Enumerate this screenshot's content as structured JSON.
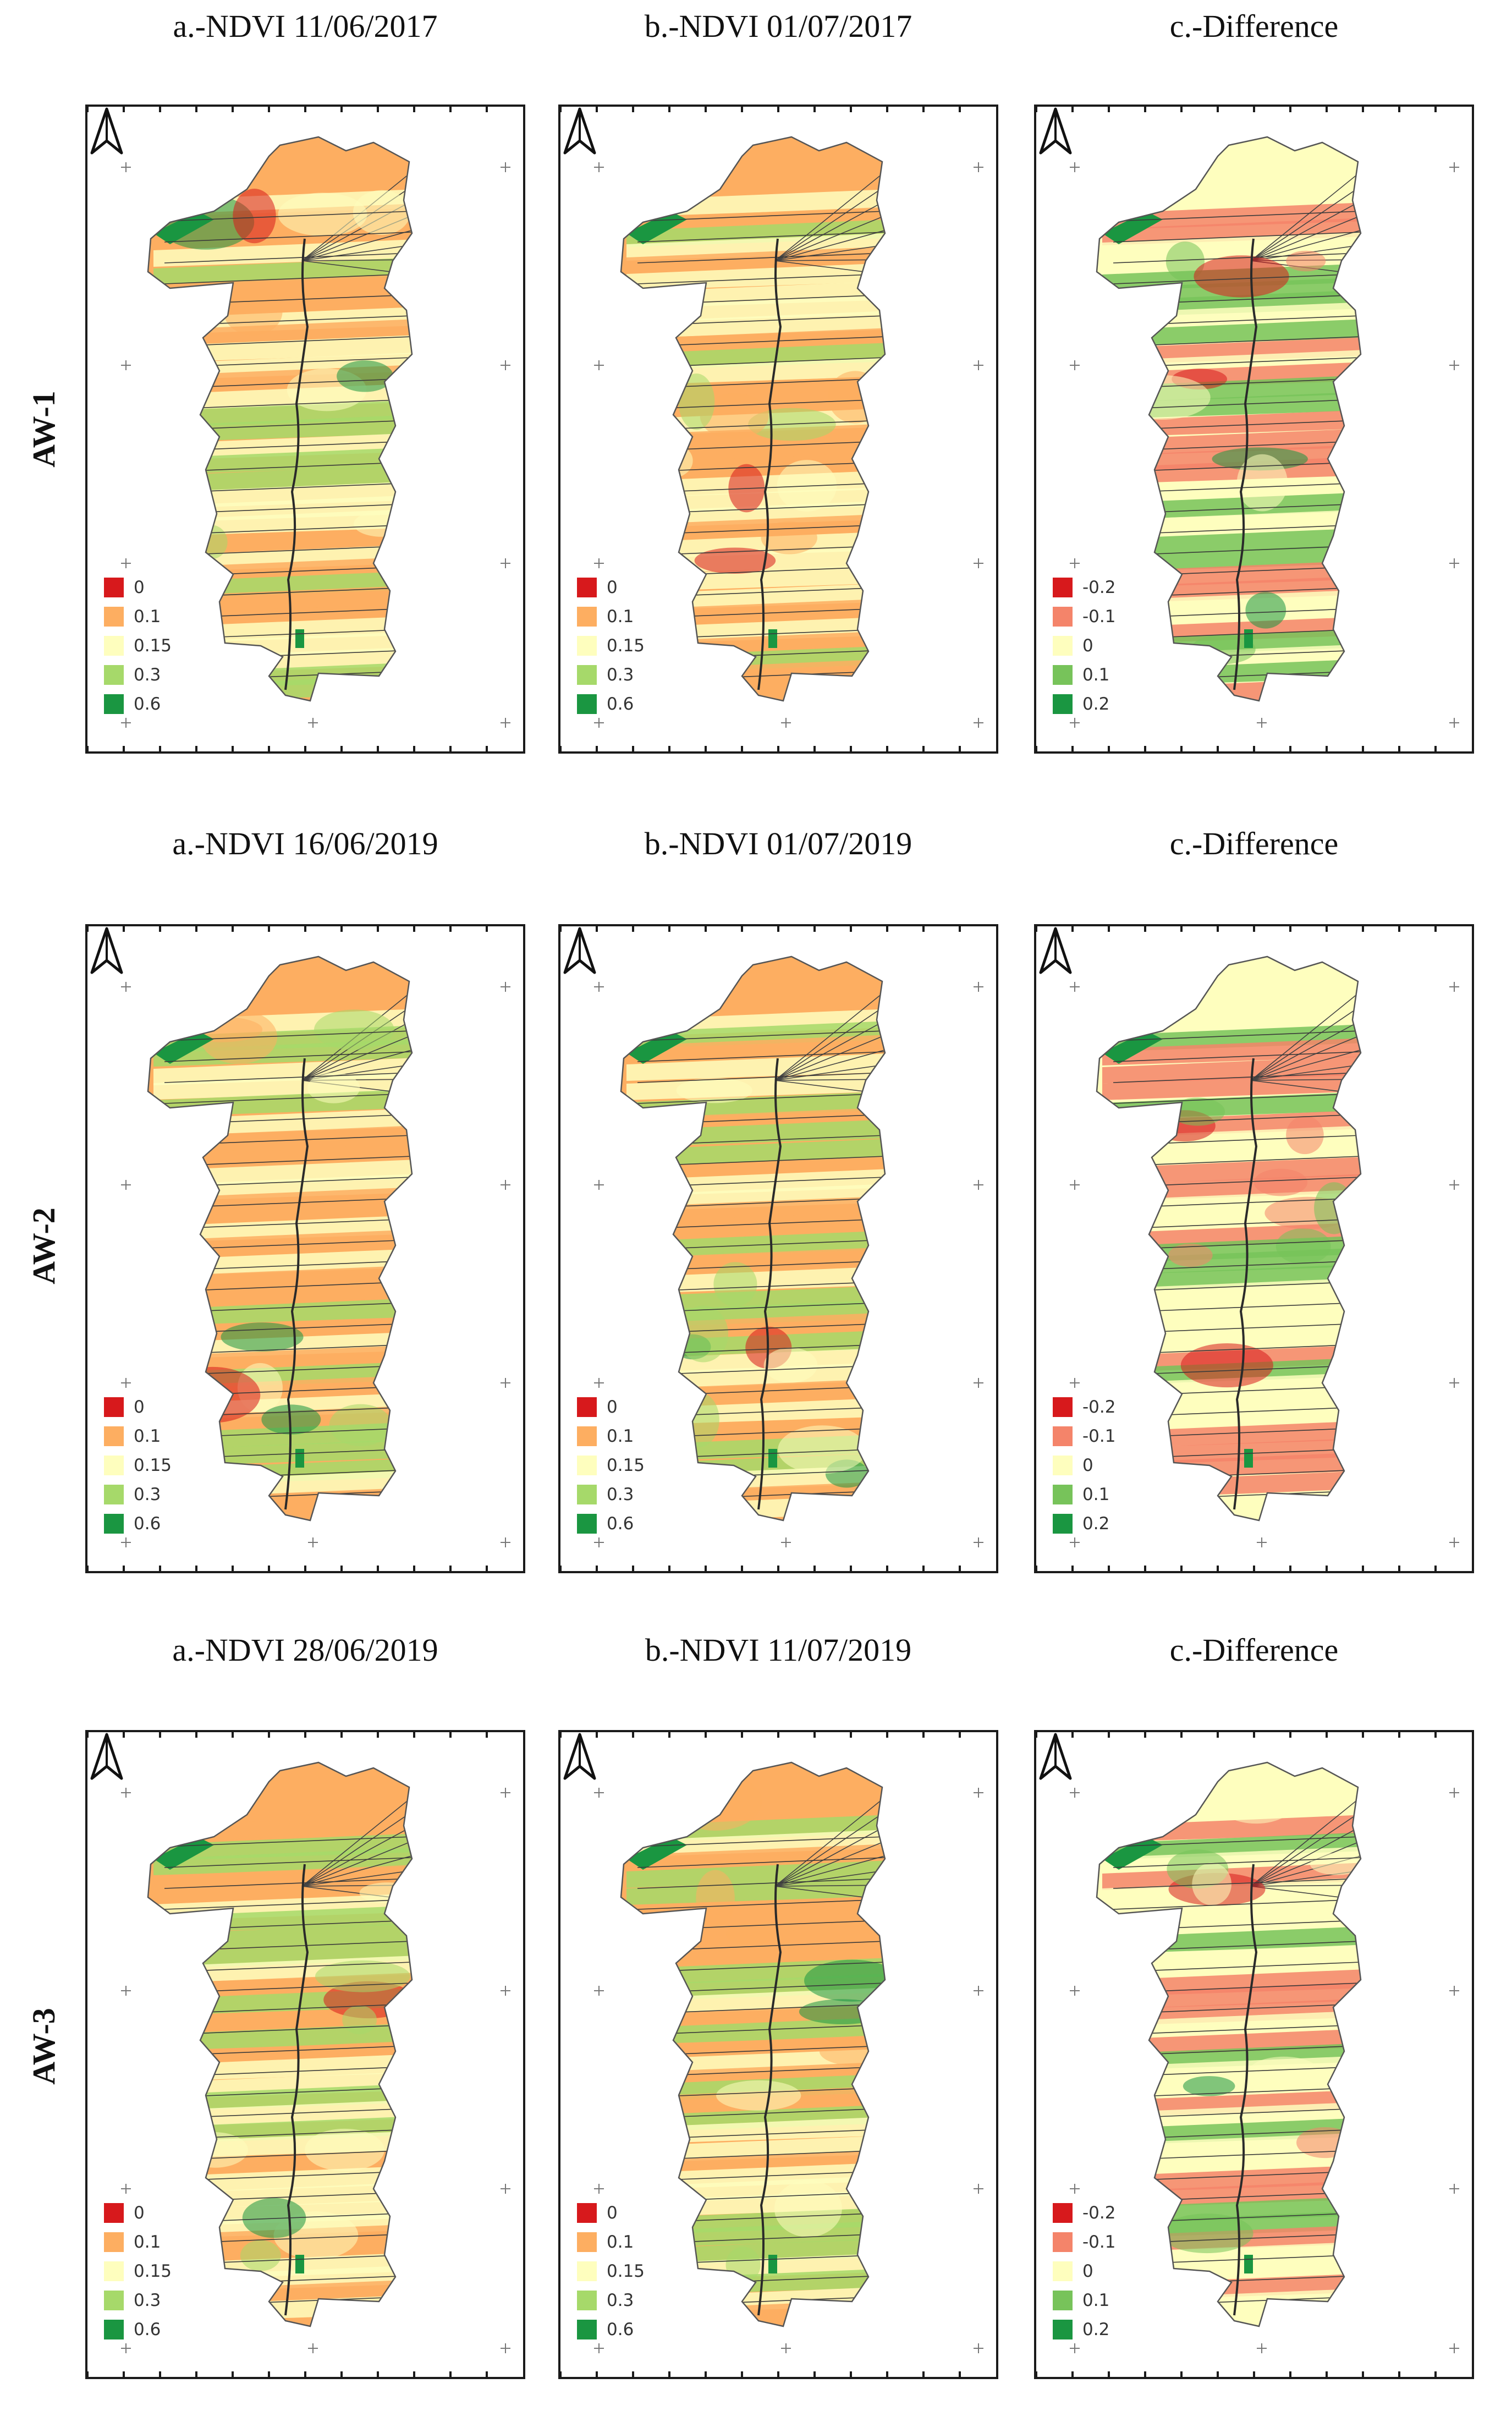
{
  "palettes": {
    "ndvi_legend_colors": [
      "#d7191c",
      "#fdae61",
      "#fefebe",
      "#a6d96a",
      "#1a9641"
    ],
    "diff_legend_colors": [
      "#d7191c",
      "#f4846a",
      "#fefebe",
      "#77c35a",
      "#1a9641"
    ]
  },
  "rows": [
    {
      "label": "AW-1",
      "panels": [
        {
          "title": "a.-NDVI 11/06/2017",
          "legend": [
            "0",
            "0.1",
            "0.15",
            "0.3",
            "0.6"
          ],
          "north_icon": "north-arrow-icon"
        },
        {
          "title": "b.-NDVI 01/07/2017",
          "legend": [
            "0",
            "0.1",
            "0.15",
            "0.3",
            "0.6"
          ],
          "north_icon": "north-arrow-icon"
        },
        {
          "title": "c.-Difference",
          "legend": [
            "-0.2",
            "-0.1",
            "0",
            "0.1",
            "0.2"
          ],
          "north_icon": "north-arrow-icon"
        }
      ]
    },
    {
      "label": "AW-2",
      "panels": [
        {
          "title": "a.-NDVI 16/06/2019",
          "legend": [
            "0",
            "0.1",
            "0.15",
            "0.3",
            "0.6"
          ],
          "north_icon": "north-arrow-icon"
        },
        {
          "title": "b.-NDVI 01/07/2019",
          "legend": [
            "0",
            "0.1",
            "0.15",
            "0.3",
            "0.6"
          ],
          "north_icon": "north-arrow-icon"
        },
        {
          "title": "c.-Difference",
          "legend": [
            "-0.2",
            "-0.1",
            "0",
            "0.1",
            "0.2"
          ],
          "north_icon": "north-arrow-icon"
        }
      ]
    },
    {
      "label": "AW-3",
      "panels": [
        {
          "title": "a.-NDVI 28/06/2019",
          "legend": [
            "0",
            "0.1",
            "0.15",
            "0.3",
            "0.6"
          ],
          "north_icon": "north-arrow-icon"
        },
        {
          "title": "b.-NDVI 11/07/2019",
          "legend": [
            "0",
            "0.1",
            "0.15",
            "0.3",
            "0.6"
          ],
          "north_icon": "north-arrow-icon"
        },
        {
          "title": "c.-Difference",
          "legend": [
            "-0.2",
            "-0.1",
            "0",
            "0.1",
            "0.2"
          ],
          "north_icon": "north-arrow-icon"
        }
      ]
    }
  ]
}
